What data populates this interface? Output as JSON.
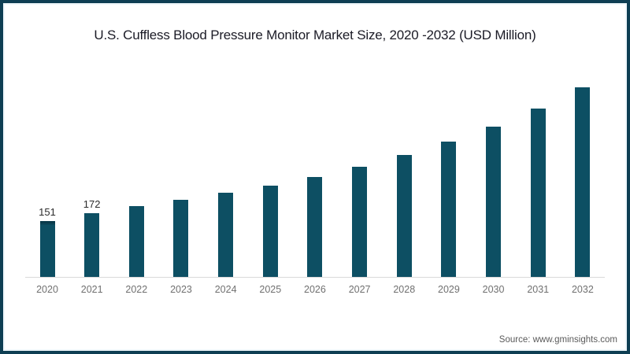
{
  "chart_data": {
    "type": "bar",
    "title": "U.S. Cuffless Blood Pressure Monitor Market Size, 2020 -2032 (USD Million)",
    "xlabel": "",
    "ylabel": "",
    "unit": "USD Million",
    "ylim": [
      0,
      560
    ],
    "grid": false,
    "legend": false,
    "bar_color": "#0d4f63",
    "categories": [
      "2020",
      "2021",
      "2022",
      "2023",
      "2024",
      "2025",
      "2026",
      "2027",
      "2028",
      "2029",
      "2030",
      "2031",
      "2032"
    ],
    "values": [
      151,
      172,
      191,
      208,
      226,
      246,
      270,
      297,
      329,
      365,
      406,
      455,
      512
    ],
    "data_labels": [
      "151",
      "172",
      "",
      "",
      "",
      "",
      "",
      "",
      "",
      "",
      "",
      "",
      ""
    ]
  },
  "footer": {
    "source": "Source: www.gminsights.com"
  },
  "colors": {
    "accent": "#0d4f63",
    "frame_border": "#0e3e53",
    "axis_line": "#d9d9d9",
    "tick_text": "#707070",
    "title_text": "#1b1b26",
    "source_text": "#5a5a5a"
  }
}
